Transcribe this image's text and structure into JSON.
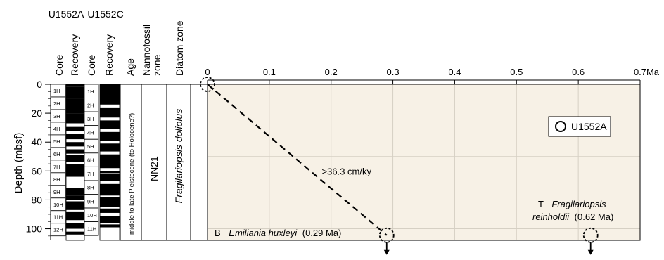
{
  "site_labels": {
    "a": "U1552A",
    "b": "U1552C"
  },
  "column_headers": {
    "core_a": "Core",
    "recovery_a": "Recovery",
    "core_c": "Core",
    "recovery_c": "Recovery",
    "age": "Age",
    "nanno_line1": "Nannofossil",
    "nanno_line2": "zone",
    "diatom": "Diatom zone"
  },
  "age_text": "middle to late Pleistocene (to Holocene?)",
  "nanno_zone": "NN21",
  "diatom_zone": "Fragilariopsis doliolus",
  "cores_a": [
    "1H",
    "2H",
    "3H",
    "4H",
    "5H",
    "6H",
    "7H",
    "8H",
    "9H",
    "10H",
    "11H",
    "12H"
  ],
  "cores_c": [
    "1H",
    "2H",
    "3H",
    "4H",
    "5H",
    "6H",
    "7H",
    "8H",
    "9H",
    "10H",
    "11H"
  ],
  "recovery_a": [
    [
      0,
      1.8
    ],
    [
      1.8,
      10
    ],
    [
      10,
      20
    ],
    [
      20,
      27
    ],
    [
      29.5,
      32.5
    ],
    [
      34.5,
      38
    ],
    [
      40,
      43
    ],
    [
      45,
      48
    ],
    [
      49,
      54
    ],
    [
      55,
      64
    ],
    [
      72,
      77
    ],
    [
      77,
      80
    ],
    [
      81,
      87
    ],
    [
      88,
      94
    ],
    [
      96,
      100
    ],
    [
      102,
      104
    ]
  ],
  "recovery_c": [
    [
      0,
      8
    ],
    [
      8,
      14
    ],
    [
      16,
      23
    ],
    [
      25,
      31
    ],
    [
      33,
      39
    ],
    [
      41,
      46.5
    ],
    [
      48.5,
      58
    ],
    [
      60,
      61.5
    ],
    [
      62,
      67
    ],
    [
      69,
      77
    ],
    [
      78,
      85
    ],
    [
      86,
      89
    ],
    [
      91,
      96
    ],
    [
      97,
      99
    ]
  ],
  "y_axis_label": "Depth (mbsf)",
  "x_unit": "Ma",
  "chart_data": {
    "type": "scatter",
    "xlim": [
      0,
      0.7
    ],
    "ylim": [
      0,
      108
    ],
    "x_ticks": [
      "0",
      "0.1",
      "0.2",
      "0.3",
      "0.4",
      "0.5",
      "0.6",
      "0.7"
    ],
    "y_ticks": [
      "0",
      "20",
      "40",
      "60",
      "80",
      "100"
    ],
    "ylabel": "Depth (mbsf)",
    "legend": {
      "label": "U1552A",
      "position": "top-right"
    },
    "grid": true,
    "series": [
      {
        "name": "U1552A",
        "points": [
          [
            0.0,
            0.0
          ],
          [
            0.29,
            104.5
          ],
          [
            0.62,
            104.5
          ]
        ]
      }
    ],
    "rate_line": {
      "from": [
        0.0,
        0.0
      ],
      "to": [
        0.29,
        104.5
      ],
      "label": ">36.3 cm/ky"
    },
    "datums": [
      {
        "prefix": "B",
        "taxon": "Emiliania huxleyi",
        "age": "(0.29 Ma)",
        "x": 0.29,
        "y": 104.5,
        "below_base": true
      },
      {
        "prefix": "T",
        "taxon_line1": "Fragilariopsis",
        "taxon_line2": "reinholdii",
        "age": "(0.62 Ma)",
        "x": 0.62,
        "y": 104.5,
        "below_base": true
      }
    ]
  }
}
